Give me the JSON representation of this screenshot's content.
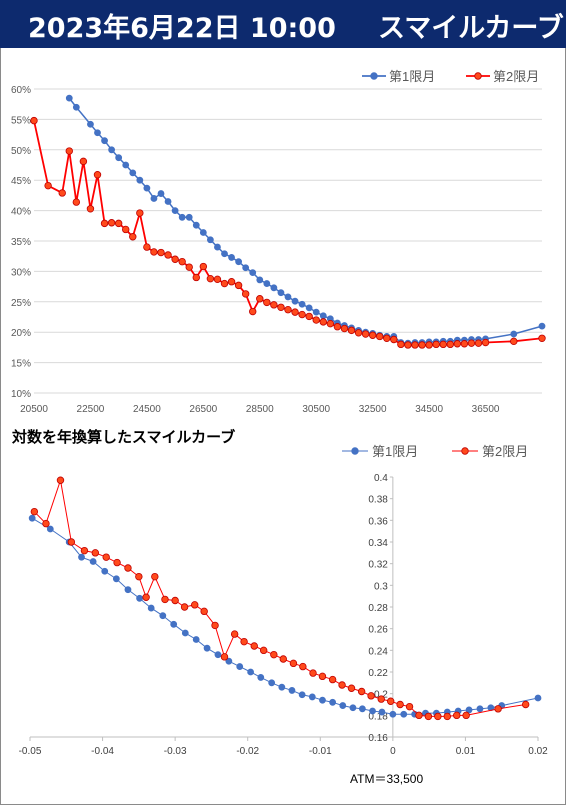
{
  "header": {
    "date_time": "2023年6月22日 10:00",
    "title": "スマイルカーブ",
    "bg_color": "#0d2a6e"
  },
  "colors": {
    "series1": "#4472c4",
    "series2": "#ff0000",
    "series2_fill": "#ff4a1c"
  },
  "chart_data": [
    {
      "type": "line",
      "title": "",
      "xlabel": "",
      "ylabel": "",
      "xlim": [
        20500,
        38500
      ],
      "ylim": [
        0.1,
        0.6
      ],
      "x_ticks": [
        20500,
        22500,
        24500,
        26500,
        28500,
        30500,
        32500,
        34500,
        36500
      ],
      "y_ticks": [
        0.1,
        0.15,
        0.2,
        0.25,
        0.3,
        0.35,
        0.4,
        0.45,
        0.5,
        0.55,
        0.6
      ],
      "y_tick_labels": [
        "10%",
        "15%",
        "20%",
        "25%",
        "30%",
        "35%",
        "40%",
        "45%",
        "50%",
        "55%",
        "60%"
      ],
      "legend_position": "top-right",
      "grid": true,
      "series": [
        {
          "name": "第1限月",
          "x": [
            21750,
            22000,
            22500,
            22750,
            23000,
            23250,
            23500,
            23750,
            24000,
            24250,
            24500,
            24750,
            25000,
            25250,
            25500,
            25750,
            26000,
            26250,
            26500,
            26750,
            27000,
            27250,
            27500,
            27750,
            28000,
            28250,
            28500,
            28750,
            29000,
            29250,
            29500,
            29750,
            30000,
            30250,
            30500,
            30750,
            31000,
            31250,
            31500,
            31750,
            32000,
            32250,
            32500,
            32750,
            33000,
            33250,
            33500,
            33750,
            34000,
            34250,
            34500,
            34750,
            35000,
            35250,
            35500,
            35750,
            36000,
            36250,
            36500,
            37500,
            38500
          ],
          "y": [
            0.585,
            0.57,
            0.542,
            0.528,
            0.515,
            0.5,
            0.487,
            0.475,
            0.462,
            0.45,
            0.437,
            0.42,
            0.428,
            0.415,
            0.4,
            0.389,
            0.389,
            0.376,
            0.364,
            0.352,
            0.34,
            0.329,
            0.323,
            0.316,
            0.306,
            0.298,
            0.286,
            0.28,
            0.273,
            0.265,
            0.258,
            0.251,
            0.246,
            0.24,
            0.233,
            0.227,
            0.222,
            0.215,
            0.211,
            0.207,
            0.203,
            0.2,
            0.198,
            0.195,
            0.193,
            0.193,
            0.183,
            0.182,
            0.183,
            0.183,
            0.184,
            0.184,
            0.185,
            0.185,
            0.187,
            0.187,
            0.188,
            0.188,
            0.189,
            0.197,
            0.21
          ]
        },
        {
          "name": "第2限月",
          "x": [
            20500,
            21000,
            21500,
            21750,
            22000,
            22250,
            22500,
            22750,
            23000,
            23250,
            23500,
            23750,
            24000,
            24250,
            24500,
            24750,
            25000,
            25250,
            25500,
            25750,
            26000,
            26250,
            26500,
            26750,
            27000,
            27250,
            27500,
            27750,
            28000,
            28250,
            28500,
            28750,
            29000,
            29250,
            29500,
            29750,
            30000,
            30250,
            30500,
            30750,
            31000,
            31250,
            31500,
            31750,
            32000,
            32250,
            32500,
            32750,
            33000,
            33250,
            33500,
            33750,
            34000,
            34250,
            34500,
            34750,
            35000,
            35250,
            35500,
            35750,
            36000,
            36250,
            36500,
            37500,
            38500
          ],
          "y": [
            0.548,
            0.441,
            0.429,
            0.498,
            0.414,
            0.481,
            0.403,
            0.459,
            0.379,
            0.38,
            0.379,
            0.369,
            0.357,
            0.396,
            0.34,
            0.332,
            0.331,
            0.327,
            0.32,
            0.316,
            0.307,
            0.29,
            0.308,
            0.288,
            0.287,
            0.28,
            0.283,
            0.277,
            0.263,
            0.234,
            0.255,
            0.249,
            0.245,
            0.241,
            0.237,
            0.233,
            0.229,
            0.226,
            0.22,
            0.217,
            0.214,
            0.209,
            0.206,
            0.203,
            0.199,
            0.197,
            0.195,
            0.193,
            0.19,
            0.188,
            0.18,
            0.179,
            0.179,
            0.179,
            0.179,
            0.18,
            0.18,
            0.18,
            0.181,
            0.181,
            0.182,
            0.182,
            0.183,
            0.185,
            0.19
          ]
        }
      ]
    },
    {
      "type": "line",
      "title": "対数を年換算したスマイルカーブ",
      "xlabel": "",
      "ylabel": "",
      "annotation": "ATM＝33,500",
      "xlim": [
        -0.05,
        0.02
      ],
      "ylim": [
        0.16,
        0.4
      ],
      "x_ticks": [
        -0.05,
        -0.04,
        -0.03,
        -0.02,
        -0.01,
        0,
        0.01,
        0.02
      ],
      "x_tick_labels": [
        "-0.05",
        "-0.04",
        "-0.03",
        "-0.02",
        "-0.01",
        "0",
        "0.01",
        "0.02"
      ],
      "y_ticks": [
        0.16,
        0.18,
        0.2,
        0.22,
        0.24,
        0.26,
        0.28,
        0.3,
        0.32,
        0.34,
        0.36,
        0.38,
        0.4
      ],
      "y_tick_labels": [
        "0.16",
        "0.18",
        "0.2",
        "0.22",
        "0.24",
        "0.26",
        "0.28",
        "0.3",
        "0.32",
        "0.34",
        "0.36",
        "0.38",
        "0.4"
      ],
      "legend_position": "top-right",
      "grid": false,
      "series": [
        {
          "name": "第1限月",
          "x": [
            -0.0497,
            -0.0472,
            -0.0446,
            -0.0429,
            -0.0413,
            -0.0397,
            -0.0381,
            -0.0365,
            -0.0349,
            -0.0333,
            -0.0317,
            -0.0302,
            -0.0286,
            -0.0271,
            -0.0256,
            -0.0241,
            -0.0226,
            -0.0211,
            -0.0196,
            -0.0182,
            -0.0167,
            -0.0153,
            -0.0139,
            -0.0125,
            -0.0111,
            -0.0097,
            -0.0083,
            -0.0069,
            -0.0055,
            -0.0042,
            -0.0028,
            -0.0015,
            0.0,
            0.0015,
            0.003,
            0.0045,
            0.006,
            0.0075,
            0.009,
            0.0105,
            0.012,
            0.0135,
            0.015,
            0.02
          ],
          "y": [
            0.362,
            0.352,
            0.34,
            0.326,
            0.322,
            0.313,
            0.306,
            0.296,
            0.288,
            0.279,
            0.272,
            0.264,
            0.256,
            0.25,
            0.242,
            0.236,
            0.23,
            0.225,
            0.22,
            0.215,
            0.21,
            0.206,
            0.203,
            0.199,
            0.197,
            0.194,
            0.192,
            0.189,
            0.187,
            0.186,
            0.184,
            0.183,
            0.181,
            0.181,
            0.181,
            0.182,
            0.182,
            0.183,
            0.184,
            0.185,
            0.186,
            0.187,
            0.189,
            0.196
          ]
        },
        {
          "name": "第2限月",
          "x": [
            -0.0494,
            -0.0478,
            -0.0458,
            -0.0443,
            -0.0425,
            -0.041,
            -0.0395,
            -0.038,
            -0.0365,
            -0.035,
            -0.034,
            -0.0328,
            -0.0314,
            -0.03,
            -0.0287,
            -0.0273,
            -0.026,
            -0.0245,
            -0.0232,
            -0.0218,
            -0.0205,
            -0.0191,
            -0.0178,
            -0.0164,
            -0.0151,
            -0.0137,
            -0.0124,
            -0.011,
            -0.0097,
            -0.0083,
            -0.007,
            -0.0057,
            -0.0043,
            -0.003,
            -0.0016,
            -0.0003,
            0.001,
            0.0023,
            0.0036,
            0.0049,
            0.0062,
            0.0075,
            0.0088,
            0.0101,
            0.0145,
            0.0183
          ],
          "y": [
            0.368,
            0.357,
            0.397,
            0.34,
            0.332,
            0.33,
            0.326,
            0.321,
            0.316,
            0.308,
            0.289,
            0.308,
            0.287,
            0.286,
            0.28,
            0.282,
            0.276,
            0.263,
            0.234,
            0.255,
            0.248,
            0.244,
            0.24,
            0.236,
            0.232,
            0.228,
            0.225,
            0.219,
            0.216,
            0.213,
            0.208,
            0.205,
            0.202,
            0.198,
            0.195,
            0.193,
            0.19,
            0.188,
            0.18,
            0.179,
            0.179,
            0.179,
            0.18,
            0.18,
            0.186,
            0.19
          ]
        }
      ]
    }
  ]
}
